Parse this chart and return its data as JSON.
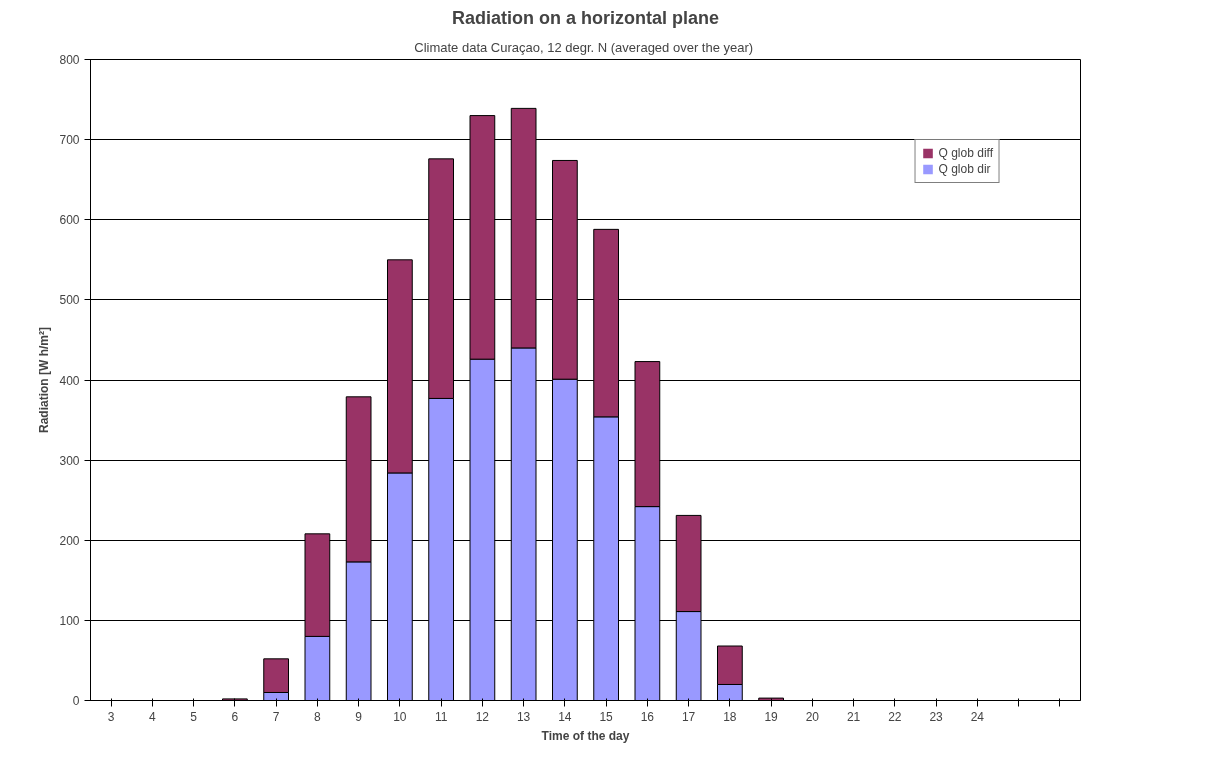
{
  "chart_data": {
    "type": "bar",
    "title": "Radiation on a horizontal plane",
    "subtitle": "Climate data Curaçao,  12 degr. N (averaged over the year)",
    "xlabel": "Time of the day",
    "ylabel": "Radiation [W h/m²]",
    "categories": [
      "3",
      "4",
      "5",
      "6",
      "7",
      "8",
      "9",
      "10",
      "11",
      "12",
      "13",
      "14",
      "15",
      "16",
      "17",
      "18",
      "19",
      "20",
      "21",
      "22",
      "23",
      "24",
      null,
      null
    ],
    "stacked": true,
    "series": [
      {
        "name": "Q glob dir",
        "color": "#9999ff",
        "values": [
          0,
          0,
          0,
          0,
          10,
          80,
          173,
          284,
          377,
          426,
          440,
          401,
          354,
          242,
          111,
          20,
          0,
          0,
          0,
          0,
          0,
          0,
          0,
          0
        ]
      },
      {
        "name": "Q glob diff",
        "color": "#993366",
        "values": [
          0,
          0,
          0,
          2,
          42,
          128,
          206,
          266,
          299,
          304,
          299,
          273,
          234,
          181,
          120,
          48,
          3,
          0,
          0,
          0,
          0,
          0,
          0,
          0
        ]
      }
    ],
    "ylim": [
      0,
      800
    ],
    "yticks": [
      0,
      100,
      200,
      300,
      400,
      500,
      600,
      700,
      800
    ],
    "grid": "y",
    "legend": "top right"
  }
}
